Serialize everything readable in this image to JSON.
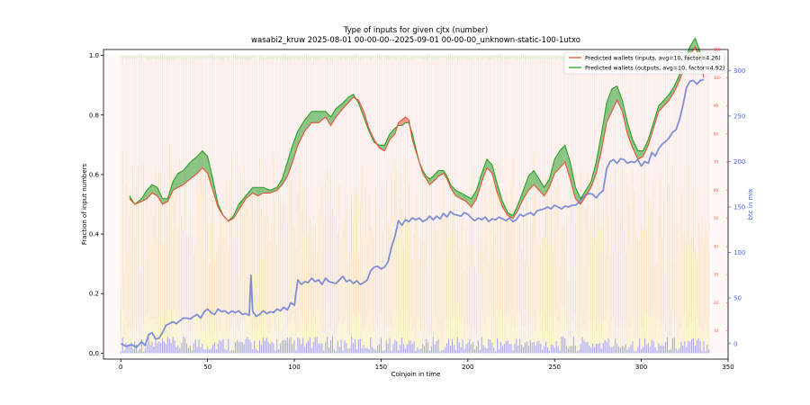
{
  "chart_data": {
    "type": "line",
    "title": "Type of inputs for given cjtx (number)",
    "subtitle": "wasabi2_kruw 2025-08-01 00-00-00--2025-09-01 00-00-00_unknown-static-100-1utxo",
    "xlabel": "Coinjoin in time",
    "ylabel": "Fraction of input numbers",
    "ylabel_right": "btc in mix",
    "xlim": [
      -10,
      350
    ],
    "ylim": [
      -0.02,
      1.02
    ],
    "ylim_right_inner": [
      0,
      110
    ],
    "ylim_right_outer": [
      -17,
      323
    ],
    "x_ticks": [
      0,
      50,
      100,
      150,
      200,
      250,
      300,
      350
    ],
    "y_ticks": [
      "0.0",
      "0.2",
      "0.4",
      "0.6",
      "0.8",
      "1.0"
    ],
    "y_ticks_right_inner": [
      10,
      20,
      30,
      40,
      50,
      60,
      70,
      80,
      90,
      100,
      110
    ],
    "y_ticks_right_outer": [
      0,
      50,
      100,
      150,
      200,
      250,
      300
    ],
    "grid": false,
    "legend_position": "top-right",
    "legend": [
      {
        "name": "Predicted wallets (inputs, avg=10, factor=4.26)",
        "color": "#e8503a"
      },
      {
        "name": "Predicted wallets (outputs, avg=10, factor=4.92)",
        "color": "#2ca02c"
      }
    ],
    "colors": {
      "inputs_line": "#e8503a",
      "outputs_line": "#2ca02c",
      "btc_line": "#6f84d6",
      "stack_blue": "#4a4de0",
      "stack_yellow": "#f4e36a",
      "stack_orange": "#f2b860",
      "stack_pink": "#f2b8bd",
      "stack_green": "#9fd38f",
      "right_inner_axis": "#e8503a",
      "right_outer_axis": "#4a62d8"
    },
    "predicted_inputs": [
      [
        5,
        57
      ],
      [
        8,
        55
      ],
      [
        12,
        56
      ],
      [
        15,
        57
      ],
      [
        18,
        59
      ],
      [
        21,
        58
      ],
      [
        24,
        55
      ],
      [
        27,
        56
      ],
      [
        30,
        60
      ],
      [
        33,
        61
      ],
      [
        36,
        62
      ],
      [
        40,
        64
      ],
      [
        44,
        66
      ],
      [
        47,
        68
      ],
      [
        50,
        66
      ],
      [
        53,
        60
      ],
      [
        56,
        54
      ],
      [
        59,
        51
      ],
      [
        62,
        49
      ],
      [
        65,
        50
      ],
      [
        68,
        53
      ],
      [
        72,
        57
      ],
      [
        76,
        59
      ],
      [
        79,
        58
      ],
      [
        82,
        59
      ],
      [
        86,
        59
      ],
      [
        90,
        60
      ],
      [
        93,
        62
      ],
      [
        96,
        65
      ],
      [
        99,
        70
      ],
      [
        102,
        76
      ],
      [
        106,
        81
      ],
      [
        110,
        84
      ],
      [
        114,
        84
      ],
      [
        118,
        86
      ],
      [
        121,
        83
      ],
      [
        124,
        86
      ],
      [
        128,
        89
      ],
      [
        131,
        91
      ],
      [
        134,
        93
      ],
      [
        137,
        92
      ],
      [
        140,
        88
      ],
      [
        143,
        82
      ],
      [
        146,
        78
      ],
      [
        149,
        75
      ],
      [
        152,
        74
      ],
      [
        155,
        78
      ],
      [
        158,
        80
      ],
      [
        160,
        84
      ],
      [
        162,
        85
      ],
      [
        164,
        86
      ],
      [
        166,
        85
      ],
      [
        168,
        78
      ],
      [
        170,
        74
      ],
      [
        172,
        70
      ],
      [
        174,
        66
      ],
      [
        176,
        64
      ],
      [
        178,
        62
      ],
      [
        180,
        63
      ],
      [
        183,
        65
      ],
      [
        186,
        66
      ],
      [
        188,
        64
      ],
      [
        190,
        61
      ],
      [
        193,
        58
      ],
      [
        196,
        57
      ],
      [
        199,
        56
      ],
      [
        202,
        54
      ],
      [
        205,
        57
      ],
      [
        208,
        63
      ],
      [
        211,
        68
      ],
      [
        214,
        66
      ],
      [
        217,
        59
      ],
      [
        220,
        54
      ],
      [
        223,
        51
      ],
      [
        226,
        50
      ],
      [
        229,
        53
      ],
      [
        232,
        57
      ],
      [
        235,
        60
      ],
      [
        238,
        62
      ],
      [
        241,
        60
      ],
      [
        244,
        58
      ],
      [
        247,
        61
      ],
      [
        250,
        66
      ],
      [
        253,
        68
      ],
      [
        256,
        70
      ],
      [
        259,
        64
      ],
      [
        262,
        57
      ],
      [
        265,
        55
      ],
      [
        268,
        58
      ],
      [
        271,
        61
      ],
      [
        274,
        66
      ],
      [
        277,
        74
      ],
      [
        280,
        84
      ],
      [
        283,
        88
      ],
      [
        286,
        92
      ],
      [
        289,
        88
      ],
      [
        292,
        80
      ],
      [
        295,
        75
      ],
      [
        298,
        71
      ],
      [
        301,
        72
      ],
      [
        304,
        76
      ],
      [
        307,
        82
      ],
      [
        310,
        88
      ],
      [
        313,
        90
      ],
      [
        316,
        92
      ],
      [
        319,
        95
      ],
      [
        322,
        99
      ],
      [
        325,
        104
      ],
      [
        328,
        108
      ],
      [
        331,
        111
      ],
      [
        334,
        106
      ],
      [
        336,
        100
      ]
    ],
    "predicted_outputs": [
      [
        5,
        58
      ],
      [
        8,
        55
      ],
      [
        12,
        57
      ],
      [
        15,
        60
      ],
      [
        18,
        62
      ],
      [
        21,
        61
      ],
      [
        24,
        57
      ],
      [
        27,
        57
      ],
      [
        30,
        63
      ],
      [
        33,
        66
      ],
      [
        36,
        67
      ],
      [
        40,
        70
      ],
      [
        44,
        72
      ],
      [
        47,
        74
      ],
      [
        50,
        72
      ],
      [
        53,
        64
      ],
      [
        56,
        55
      ],
      [
        59,
        51
      ],
      [
        62,
        49
      ],
      [
        65,
        51
      ],
      [
        68,
        55
      ],
      [
        72,
        58
      ],
      [
        76,
        61
      ],
      [
        79,
        61
      ],
      [
        82,
        61
      ],
      [
        86,
        60
      ],
      [
        90,
        61
      ],
      [
        93,
        64
      ],
      [
        96,
        70
      ],
      [
        99,
        76
      ],
      [
        102,
        81
      ],
      [
        106,
        85
      ],
      [
        110,
        88
      ],
      [
        114,
        88
      ],
      [
        118,
        88
      ],
      [
        121,
        86
      ],
      [
        124,
        89
      ],
      [
        128,
        91
      ],
      [
        131,
        93
      ],
      [
        134,
        94
      ],
      [
        137,
        91
      ],
      [
        140,
        86
      ],
      [
        143,
        81
      ],
      [
        146,
        77
      ],
      [
        149,
        76
      ],
      [
        152,
        76
      ],
      [
        155,
        80
      ],
      [
        158,
        82
      ],
      [
        160,
        83
      ],
      [
        162,
        83
      ],
      [
        164,
        84
      ],
      [
        166,
        84
      ],
      [
        168,
        80
      ],
      [
        170,
        75
      ],
      [
        172,
        70
      ],
      [
        174,
        67
      ],
      [
        176,
        65
      ],
      [
        178,
        64
      ],
      [
        180,
        65
      ],
      [
        183,
        67
      ],
      [
        186,
        67
      ],
      [
        188,
        65
      ],
      [
        190,
        62
      ],
      [
        193,
        60
      ],
      [
        196,
        59
      ],
      [
        199,
        58
      ],
      [
        202,
        57
      ],
      [
        205,
        60
      ],
      [
        208,
        66
      ],
      [
        211,
        71
      ],
      [
        214,
        69
      ],
      [
        217,
        62
      ],
      [
        220,
        56
      ],
      [
        223,
        52
      ],
      [
        226,
        51
      ],
      [
        229,
        55
      ],
      [
        232,
        60
      ],
      [
        235,
        65
      ],
      [
        238,
        67
      ],
      [
        241,
        64
      ],
      [
        244,
        61
      ],
      [
        247,
        64
      ],
      [
        250,
        71
      ],
      [
        253,
        74
      ],
      [
        256,
        76
      ],
      [
        259,
        70
      ],
      [
        262,
        61
      ],
      [
        265,
        57
      ],
      [
        268,
        60
      ],
      [
        271,
        63
      ],
      [
        274,
        70
      ],
      [
        277,
        80
      ],
      [
        280,
        91
      ],
      [
        283,
        96
      ],
      [
        286,
        97
      ],
      [
        289,
        92
      ],
      [
        292,
        84
      ],
      [
        295,
        78
      ],
      [
        298,
        74
      ],
      [
        301,
        74
      ],
      [
        304,
        78
      ],
      [
        307,
        84
      ],
      [
        310,
        90
      ],
      [
        313,
        92
      ],
      [
        316,
        94
      ],
      [
        319,
        97
      ],
      [
        322,
        101
      ],
      [
        325,
        106
      ],
      [
        328,
        111
      ],
      [
        331,
        114
      ],
      [
        334,
        109
      ],
      [
        336,
        102
      ]
    ],
    "btc_in_mix": [
      [
        0,
        0
      ],
      [
        3,
        -3
      ],
      [
        6,
        -1
      ],
      [
        9,
        -4
      ],
      [
        12,
        2
      ],
      [
        14,
        -2
      ],
      [
        16,
        10
      ],
      [
        18,
        12
      ],
      [
        20,
        5
      ],
      [
        22,
        6
      ],
      [
        24,
        12
      ],
      [
        26,
        20
      ],
      [
        28,
        22
      ],
      [
        30,
        24
      ],
      [
        32,
        22
      ],
      [
        34,
        25
      ],
      [
        36,
        28
      ],
      [
        38,
        28
      ],
      [
        40,
        27
      ],
      [
        42,
        30
      ],
      [
        44,
        32
      ],
      [
        46,
        28
      ],
      [
        48,
        35
      ],
      [
        50,
        38
      ],
      [
        52,
        34
      ],
      [
        54,
        32
      ],
      [
        56,
        38
      ],
      [
        58,
        35
      ],
      [
        60,
        36
      ],
      [
        62,
        33
      ],
      [
        64,
        36
      ],
      [
        66,
        34
      ],
      [
        68,
        36
      ],
      [
        70,
        32
      ],
      [
        72,
        33
      ],
      [
        74,
        31
      ],
      [
        75,
        75
      ],
      [
        76,
        35
      ],
      [
        78,
        30
      ],
      [
        80,
        32
      ],
      [
        82,
        36
      ],
      [
        84,
        33
      ],
      [
        86,
        35
      ],
      [
        88,
        34
      ],
      [
        90,
        38
      ],
      [
        92,
        36
      ],
      [
        94,
        40
      ],
      [
        96,
        37
      ],
      [
        98,
        45
      ],
      [
        100,
        42
      ],
      [
        102,
        70
      ],
      [
        104,
        65
      ],
      [
        106,
        68
      ],
      [
        108,
        67
      ],
      [
        110,
        72
      ],
      [
        112,
        68
      ],
      [
        114,
        70
      ],
      [
        116,
        65
      ],
      [
        118,
        72
      ],
      [
        120,
        68
      ],
      [
        122,
        67
      ],
      [
        124,
        66
      ],
      [
        126,
        70
      ],
      [
        128,
        74
      ],
      [
        130,
        68
      ],
      [
        132,
        70
      ],
      [
        134,
        66
      ],
      [
        136,
        69
      ],
      [
        138,
        65
      ],
      [
        140,
        67
      ],
      [
        142,
        70
      ],
      [
        144,
        80
      ],
      [
        146,
        84
      ],
      [
        148,
        85
      ],
      [
        150,
        82
      ],
      [
        152,
        84
      ],
      [
        154,
        90
      ],
      [
        156,
        106
      ],
      [
        158,
        118
      ],
      [
        160,
        135
      ],
      [
        162,
        130
      ],
      [
        164,
        136
      ],
      [
        166,
        134
      ],
      [
        168,
        138
      ],
      [
        170,
        136
      ],
      [
        172,
        138
      ],
      [
        174,
        134
      ],
      [
        176,
        136
      ],
      [
        178,
        140
      ],
      [
        180,
        136
      ],
      [
        182,
        140
      ],
      [
        184,
        137
      ],
      [
        186,
        143
      ],
      [
        188,
        139
      ],
      [
        190,
        145
      ],
      [
        192,
        142
      ],
      [
        194,
        141
      ],
      [
        196,
        140
      ],
      [
        198,
        144
      ],
      [
        200,
        142
      ],
      [
        202,
        138
      ],
      [
        204,
        135
      ],
      [
        206,
        138
      ],
      [
        208,
        136
      ],
      [
        210,
        139
      ],
      [
        212,
        134
      ],
      [
        214,
        137
      ],
      [
        216,
        136
      ],
      [
        218,
        139
      ],
      [
        220,
        137
      ],
      [
        222,
        135
      ],
      [
        224,
        138
      ],
      [
        226,
        134
      ],
      [
        228,
        136
      ],
      [
        230,
        142
      ],
      [
        232,
        140
      ],
      [
        234,
        142
      ],
      [
        236,
        144
      ],
      [
        238,
        141
      ],
      [
        240,
        146
      ],
      [
        242,
        147
      ],
      [
        244,
        148
      ],
      [
        246,
        150
      ],
      [
        248,
        148
      ],
      [
        250,
        152
      ],
      [
        252,
        150
      ],
      [
        254,
        148
      ],
      [
        256,
        151
      ],
      [
        258,
        150
      ],
      [
        260,
        152
      ],
      [
        262,
        152
      ],
      [
        264,
        155
      ],
      [
        266,
        160
      ],
      [
        268,
        163
      ],
      [
        270,
        165
      ],
      [
        272,
        164
      ],
      [
        274,
        160
      ],
      [
        276,
        165
      ],
      [
        278,
        168
      ],
      [
        280,
        192
      ],
      [
        282,
        200
      ],
      [
        284,
        202
      ],
      [
        286,
        198
      ],
      [
        288,
        203
      ],
      [
        290,
        202
      ],
      [
        292,
        198
      ],
      [
        294,
        200
      ],
      [
        296,
        199
      ],
      [
        298,
        202
      ],
      [
        300,
        195
      ],
      [
        302,
        200
      ],
      [
        304,
        198
      ],
      [
        306,
        210
      ],
      [
        308,
        206
      ],
      [
        310,
        214
      ],
      [
        312,
        219
      ],
      [
        314,
        222
      ],
      [
        316,
        226
      ],
      [
        318,
        232
      ],
      [
        320,
        235
      ],
      [
        322,
        246
      ],
      [
        324,
        262
      ],
      [
        326,
        281
      ],
      [
        328,
        288
      ],
      [
        330,
        289
      ],
      [
        332,
        285
      ],
      [
        334,
        289
      ],
      [
        336,
        290
      ]
    ]
  }
}
